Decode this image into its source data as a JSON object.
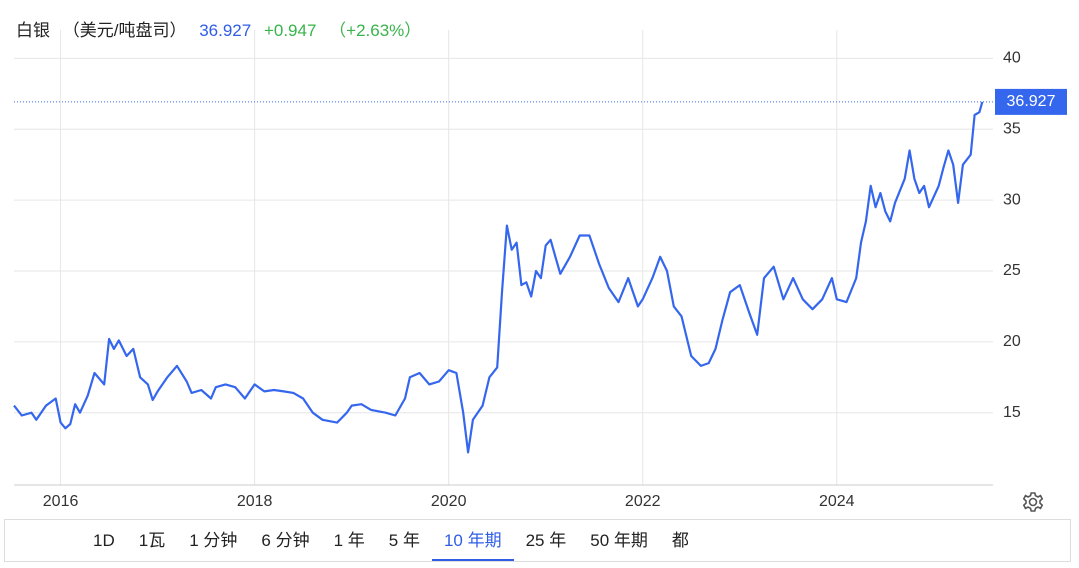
{
  "header": {
    "name": "白银",
    "unit": "（美元/吨盘司）",
    "price": 36.927,
    "change": "+0.947",
    "change_pct": "（+2.63%）"
  },
  "chart_data": {
    "type": "line",
    "x": [
      2015.52,
      2015.6,
      2015.7,
      2015.75,
      2015.85,
      2015.95,
      2016.0,
      2016.05,
      2016.1,
      2016.15,
      2016.2,
      2016.28,
      2016.35,
      2016.45,
      2016.5,
      2016.55,
      2016.6,
      2016.68,
      2016.75,
      2016.82,
      2016.9,
      2016.95,
      2017.0,
      2017.1,
      2017.2,
      2017.3,
      2017.35,
      2017.45,
      2017.55,
      2017.6,
      2017.7,
      2017.8,
      2017.9,
      2018.0,
      2018.1,
      2018.2,
      2018.3,
      2018.4,
      2018.5,
      2018.6,
      2018.7,
      2018.85,
      2018.95,
      2019.0,
      2019.1,
      2019.2,
      2019.35,
      2019.45,
      2019.55,
      2019.6,
      2019.7,
      2019.8,
      2019.9,
      2020.0,
      2020.08,
      2020.15,
      2020.2,
      2020.25,
      2020.35,
      2020.42,
      2020.5,
      2020.55,
      2020.6,
      2020.65,
      2020.7,
      2020.75,
      2020.8,
      2020.85,
      2020.9,
      2020.95,
      2021.0,
      2021.05,
      2021.1,
      2021.15,
      2021.25,
      2021.35,
      2021.45,
      2021.55,
      2021.65,
      2021.75,
      2021.85,
      2021.95,
      2022.0,
      2022.1,
      2022.18,
      2022.25,
      2022.32,
      2022.4,
      2022.5,
      2022.6,
      2022.68,
      2022.75,
      2022.82,
      2022.9,
      2023.0,
      2023.1,
      2023.18,
      2023.25,
      2023.35,
      2023.45,
      2023.55,
      2023.65,
      2023.75,
      2023.85,
      2023.95,
      2024.0,
      2024.1,
      2024.2,
      2024.25,
      2024.3,
      2024.35,
      2024.4,
      2024.45,
      2024.5,
      2024.55,
      2024.6,
      2024.7,
      2024.75,
      2024.8,
      2024.85,
      2024.9,
      2024.95,
      2025.05,
      2025.1,
      2025.15,
      2025.2,
      2025.25,
      2025.3,
      2025.38,
      2025.42,
      2025.47,
      2025.5
    ],
    "series": [
      {
        "name": "白银",
        "color": "#3567ee",
        "values": [
          15.5,
          14.8,
          15.0,
          14.5,
          15.5,
          16.0,
          14.3,
          13.9,
          14.2,
          15.6,
          15.0,
          16.2,
          17.8,
          17.0,
          20.2,
          19.5,
          20.1,
          19.0,
          19.5,
          17.5,
          17.0,
          15.9,
          16.5,
          17.5,
          18.3,
          17.2,
          16.4,
          16.6,
          16.0,
          16.8,
          17.0,
          16.8,
          16.0,
          17.0,
          16.5,
          16.6,
          16.5,
          16.4,
          16.0,
          15.0,
          14.5,
          14.3,
          15.0,
          15.5,
          15.6,
          15.2,
          15.0,
          14.8,
          16.0,
          17.5,
          17.8,
          17.0,
          17.2,
          18.0,
          17.8,
          15.0,
          12.2,
          14.5,
          15.5,
          17.5,
          18.2,
          23.5,
          28.2,
          26.5,
          27.0,
          24.0,
          24.2,
          23.2,
          25.0,
          24.5,
          26.8,
          27.2,
          26.0,
          24.8,
          26.0,
          27.5,
          27.5,
          25.5,
          23.8,
          22.8,
          24.5,
          22.5,
          23.0,
          24.5,
          26.0,
          25.0,
          22.5,
          21.8,
          19.0,
          18.3,
          18.5,
          19.5,
          21.5,
          23.5,
          24.0,
          22.0,
          20.5,
          24.5,
          25.3,
          23.0,
          24.5,
          23.0,
          22.3,
          23.0,
          24.5,
          23.0,
          22.8,
          24.5,
          27.0,
          28.5,
          31.0,
          29.5,
          30.5,
          29.2,
          28.5,
          29.8,
          31.5,
          33.5,
          31.5,
          30.5,
          31.0,
          29.5,
          31.0,
          32.3,
          33.5,
          32.5,
          29.8,
          32.5,
          33.2,
          36.0,
          36.2,
          36.927
        ]
      }
    ],
    "xlim": [
      2015.52,
      2025.61
    ],
    "xticks": [
      2016,
      2018,
      2020,
      2022,
      2024
    ],
    "ylim": [
      9.9,
      42
    ],
    "yticks": [
      15,
      20,
      25,
      30,
      35,
      40
    ],
    "grid": true
  },
  "range_buttons": [
    {
      "label": "1D"
    },
    {
      "label": "1瓦"
    },
    {
      "label": "1 分钟"
    },
    {
      "label": "6 分钟"
    },
    {
      "label": "1 年"
    },
    {
      "label": "5 年"
    },
    {
      "label": "10 年期",
      "selected": true
    },
    {
      "label": "25 年"
    },
    {
      "label": "50 年期"
    },
    {
      "label": "都"
    }
  ]
}
